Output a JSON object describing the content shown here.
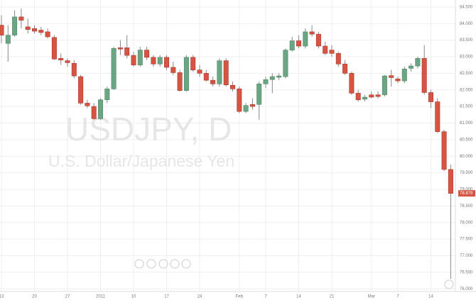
{
  "chart_data": {
    "type": "candlestick",
    "watermark_symbol": "USDJPY, D",
    "watermark_description": "U.S. Dollar/Japanese Yen",
    "categories": [
      "13",
      null,
      null,
      null,
      null,
      "20",
      null,
      null,
      null,
      null,
      "27",
      null,
      null,
      null,
      null,
      "2011",
      null,
      null,
      null,
      null,
      "10",
      null,
      null,
      null,
      null,
      "17",
      null,
      null,
      null,
      null,
      "24",
      null,
      null,
      null,
      null,
      null,
      "Feb",
      null,
      null,
      null,
      "7",
      null,
      null,
      null,
      null,
      "14",
      null,
      null,
      null,
      null,
      "21",
      null,
      null,
      null,
      null,
      null,
      "Mar",
      null,
      null,
      null,
      "7",
      null,
      null,
      null,
      null,
      "14",
      null,
      null,
      null
    ],
    "open": [
      83.95,
      83.4,
      83.65,
      84.2,
      83.9,
      83.85,
      83.8,
      83.75,
      83.58,
      82.95,
      82.88,
      82.8,
      82.4,
      81.6,
      81.5,
      81.13,
      81.7,
      82.03,
      83.27,
      83.27,
      83.04,
      82.75,
      83.2,
      82.98,
      82.78,
      82.98,
      82.68,
      82.52,
      81.98,
      82.98,
      82.6,
      82.5,
      82.29,
      82.18,
      82.88,
      82.14,
      82.03,
      81.35,
      81.56,
      81.56,
      82.18,
      82.31,
      82.38,
      82.4,
      83.2,
      83.48,
      83.32,
      83.75,
      83.68,
      83.32,
      83.2,
      83.1,
      82.78,
      82.5,
      81.9,
      81.72,
      81.85,
      81.85,
      81.85,
      82.43,
      82.33,
      82.27,
      82.65,
      82.72,
      82.95,
      81.92,
      81.64,
      80.74,
      79.6
    ],
    "high": [
      84.25,
      83.95,
      84.4,
      84.45,
      84.15,
      83.95,
      83.9,
      83.85,
      83.65,
      83.1,
      82.95,
      82.9,
      82.45,
      81.7,
      81.6,
      81.75,
      82.1,
      83.3,
      83.5,
      83.65,
      83.15,
      83.3,
      83.3,
      83.05,
      83.05,
      83.05,
      82.85,
      82.6,
      83.05,
      83.05,
      82.75,
      82.6,
      82.4,
      82.95,
      82.95,
      82.25,
      82.1,
      81.6,
      81.75,
      82.25,
      82.4,
      82.5,
      82.5,
      83.25,
      83.6,
      83.65,
      83.85,
      83.95,
      83.75,
      83.45,
      83.35,
      83.15,
      82.9,
      82.55,
      82.0,
      81.85,
      81.95,
      81.95,
      82.45,
      82.6,
      82.4,
      82.7,
      82.8,
      83.0,
      83.35,
      82.0,
      81.75,
      80.8,
      79.75
    ],
    "low": [
      83.4,
      82.85,
      83.6,
      83.85,
      83.7,
      83.7,
      83.65,
      83.55,
      82.9,
      82.75,
      82.7,
      82.35,
      81.55,
      81.45,
      81.1,
      81.1,
      81.6,
      82.0,
      83.05,
      82.95,
      82.7,
      82.7,
      82.9,
      82.7,
      82.7,
      82.6,
      82.45,
      81.95,
      81.95,
      82.55,
      82.4,
      82.25,
      82.1,
      82.1,
      82.1,
      81.95,
      81.3,
      81.3,
      81.4,
      81.1,
      82.05,
      81.9,
      82.3,
      82.35,
      83.15,
      83.25,
      83.25,
      83.6,
      83.25,
      83.05,
      83.0,
      82.7,
      82.45,
      81.85,
      81.65,
      81.65,
      81.75,
      81.75,
      81.8,
      82.1,
      82.2,
      82.2,
      82.55,
      82.65,
      81.85,
      81.45,
      80.7,
      79.55,
      76.3
    ],
    "close": [
      83.65,
      83.65,
      84.2,
      84.1,
      83.82,
      83.77,
      83.73,
      83.6,
      82.93,
      82.9,
      82.82,
      82.42,
      81.6,
      81.52,
      81.13,
      81.7,
      82.03,
      83.25,
      83.23,
      83.04,
      82.75,
      83.2,
      82.98,
      82.78,
      82.98,
      82.68,
      82.52,
      81.98,
      82.98,
      82.6,
      82.5,
      82.29,
      82.18,
      82.88,
      82.15,
      82.03,
      81.35,
      81.53,
      81.5,
      82.18,
      82.31,
      82.4,
      82.42,
      83.2,
      83.48,
      83.32,
      83.75,
      83.68,
      83.32,
      83.1,
      83.1,
      82.78,
      82.5,
      81.9,
      81.7,
      81.78,
      81.78,
      81.8,
      82.42,
      82.37,
      82.27,
      82.63,
      82.72,
      82.95,
      81.92,
      81.64,
      80.74,
      79.6,
      78.879
    ],
    "last_price_label": "78.879",
    "up_color": "#6ba583",
    "down_color": "#d75442",
    "ylim": [
      75.92,
      84.71
    ],
    "yticks": [
      {
        "value": 76,
        "label": "76.000"
      },
      {
        "value": 76.5,
        "label": "76.500"
      },
      {
        "value": 77,
        "label": "77.000"
      },
      {
        "value": 77.5,
        "label": "77.500"
      },
      {
        "value": 78,
        "label": "78.000"
      },
      {
        "value": 78.5,
        "label": "78.500"
      },
      {
        "value": 79,
        "label": "79.000"
      },
      {
        "value": 79.5,
        "label": "79.500"
      },
      {
        "value": 80,
        "label": "80.000"
      },
      {
        "value": 80.5,
        "label": "80.500"
      },
      {
        "value": 81,
        "label": "81.000"
      },
      {
        "value": 81.5,
        "label": "81.500"
      },
      {
        "value": 82,
        "label": "82.000"
      },
      {
        "value": 82.5,
        "label": "82.500"
      },
      {
        "value": 83,
        "label": "83.000"
      },
      {
        "value": 83.5,
        "label": "83.500"
      },
      {
        "value": 84,
        "label": "84.000"
      },
      {
        "value": 84.5,
        "label": "84.500"
      }
    ],
    "grid": true
  }
}
